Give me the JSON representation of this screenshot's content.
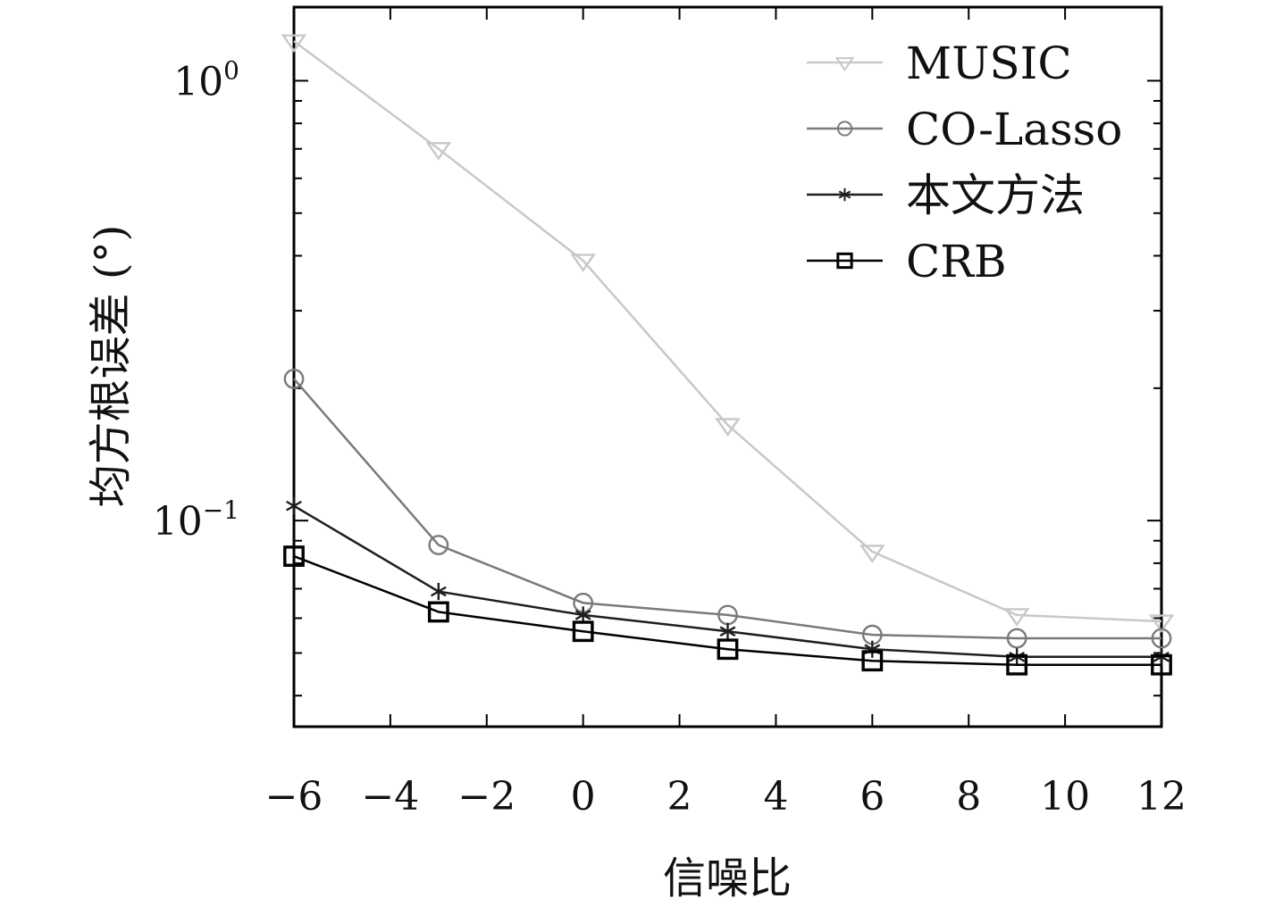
{
  "chart_data": {
    "type": "line",
    "title": "",
    "xlabel": "信噪比",
    "ylabel": "均方根误差 (°)",
    "x_scale": "linear",
    "y_scale": "log",
    "xlim": [
      -6,
      12
    ],
    "ylim": [
      0.034,
      1.47
    ],
    "x_ticks": [
      -6,
      -4,
      -2,
      0,
      2,
      4,
      6,
      8,
      10,
      12
    ],
    "x_tick_labels": [
      "−6",
      "−4",
      "−2",
      "0",
      "2",
      "4",
      "6",
      "8",
      "10",
      "12"
    ],
    "y_major_ticks": [
      {
        "value": 1,
        "base": "10",
        "exp": "0"
      },
      {
        "value": 0.1,
        "base": "10",
        "exp": "−1"
      }
    ],
    "grid": false,
    "legend_position": "top-right",
    "x": [
      -6,
      -3,
      0,
      3,
      6,
      9,
      12
    ],
    "series": [
      {
        "name": "MUSIC",
        "marker": "triangle-down",
        "color": "#c8c8c8",
        "values": [
          1.23,
          0.7,
          0.39,
          0.165,
          0.085,
          0.061,
          0.059
        ]
      },
      {
        "name": "CO-Lasso",
        "marker": "circle",
        "color": "#7a7a7a",
        "values": [
          0.21,
          0.088,
          0.065,
          0.061,
          0.055,
          0.054,
          0.054
        ]
      },
      {
        "name": "本文方法",
        "marker": "asterisk",
        "color": "#1e1e1e",
        "values": [
          0.108,
          0.069,
          0.061,
          0.056,
          0.051,
          0.049,
          0.049
        ]
      },
      {
        "name": "CRB",
        "marker": "square",
        "color": "#000000",
        "values": [
          0.083,
          0.062,
          0.056,
          0.051,
          0.048,
          0.047,
          0.047
        ]
      }
    ]
  }
}
